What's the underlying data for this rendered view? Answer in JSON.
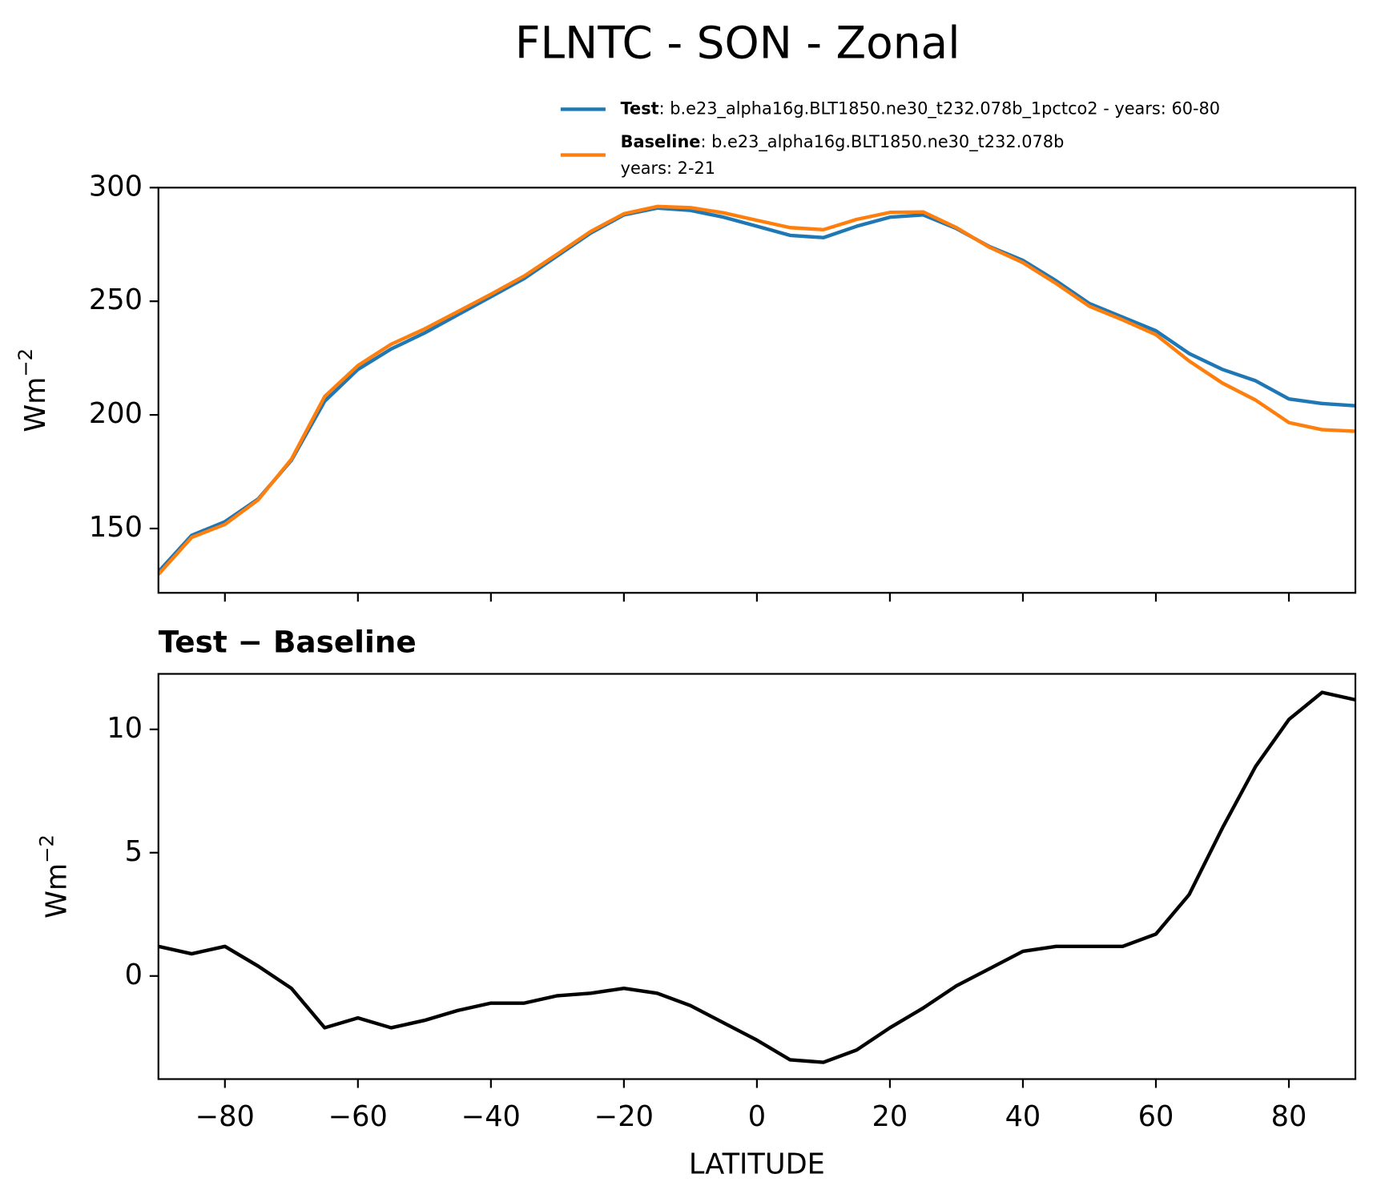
{
  "chart_data": [
    {
      "type": "line",
      "title": "FLNTC - SON - Zonal",
      "ylabel": [
        "Wm",
        "−2"
      ],
      "x": [
        -90,
        -85,
        -80,
        -75,
        -70,
        -65,
        -60,
        -55,
        -50,
        -45,
        -40,
        -35,
        -30,
        -25,
        -20,
        -15,
        -10,
        -5,
        0,
        5,
        10,
        15,
        20,
        25,
        30,
        35,
        40,
        45,
        50,
        55,
        60,
        65,
        70,
        75,
        80,
        85,
        90
      ],
      "series": [
        {
          "name": "Test",
          "detail": [
            ": b.e23_alpha16g.BLT1850.ne30_t232.078b_1pctco2 - years: 60-80"
          ],
          "color": "#1f77b4",
          "values": [
            131,
            147,
            153,
            163,
            180,
            206,
            220,
            229,
            236,
            244,
            252,
            260,
            270,
            280,
            288,
            291,
            290,
            287,
            283,
            279,
            278,
            283,
            287,
            288,
            282,
            274,
            268,
            259,
            249,
            243,
            237,
            227,
            220,
            215,
            207,
            205,
            204
          ]
        },
        {
          "name": "Baseline",
          "detail": [
            ": b.e23_alpha16g.BLT1850.ne30_t232.078b",
            "years: 2-21"
          ],
          "color": "#ff7f0e",
          "values": [
            129.8,
            146.1,
            151.8,
            162.6,
            180.5,
            208.1,
            221.7,
            231.1,
            237.8,
            245.4,
            253.1,
            261.1,
            270.8,
            280.7,
            288.5,
            291.7,
            291.2,
            288.9,
            285.6,
            282.4,
            281.5,
            286,
            289.1,
            289.3,
            282.4,
            273.7,
            267,
            257.8,
            247.8,
            241.8,
            235.3,
            223.7,
            214,
            206.5,
            196.6,
            193.5,
            192.8
          ]
        }
      ],
      "xlim": [
        -90,
        90
      ],
      "xticks": [
        -80,
        -60,
        -40,
        -20,
        0,
        20,
        40,
        60,
        80
      ],
      "ylim": [
        121.7,
        300
      ],
      "yticks": [
        150,
        200,
        250,
        300
      ]
    },
    {
      "type": "line",
      "title": "Test − Baseline",
      "xlabel": "LATITUDE",
      "ylabel": [
        "Wm",
        "−2"
      ],
      "x": [
        -90,
        -85,
        -80,
        -75,
        -70,
        -65,
        -60,
        -55,
        -50,
        -45,
        -40,
        -35,
        -30,
        -25,
        -20,
        -15,
        -10,
        -5,
        0,
        5,
        10,
        15,
        20,
        25,
        30,
        35,
        40,
        45,
        50,
        55,
        60,
        65,
        70,
        75,
        80,
        85,
        90
      ],
      "series": [
        {
          "color": "#000000",
          "values": [
            1.2,
            0.9,
            1.2,
            0.4,
            -0.5,
            -2.1,
            -1.7,
            -2.1,
            -1.8,
            -1.4,
            -1.1,
            -1.1,
            -0.8,
            -0.7,
            -0.5,
            -0.7,
            -1.2,
            -1.9,
            -2.6,
            -3.4,
            -3.5,
            -3.0,
            -2.1,
            -1.3,
            -0.4,
            0.3,
            1.0,
            1.2,
            1.2,
            1.2,
            1.7,
            3.3,
            6.0,
            8.5,
            10.4,
            11.5,
            11.2
          ]
        }
      ],
      "xlim": [
        -90,
        90
      ],
      "xticks": [
        {
          "value": -80,
          "label": "−80"
        },
        {
          "value": -60,
          "label": "−60"
        },
        {
          "value": -40,
          "label": "−40"
        },
        {
          "value": -20,
          "label": "−20"
        },
        0,
        20,
        40,
        60,
        80
      ],
      "ylim": [
        -4.18,
        12.25
      ],
      "yticks": [
        0,
        5,
        10
      ]
    }
  ]
}
